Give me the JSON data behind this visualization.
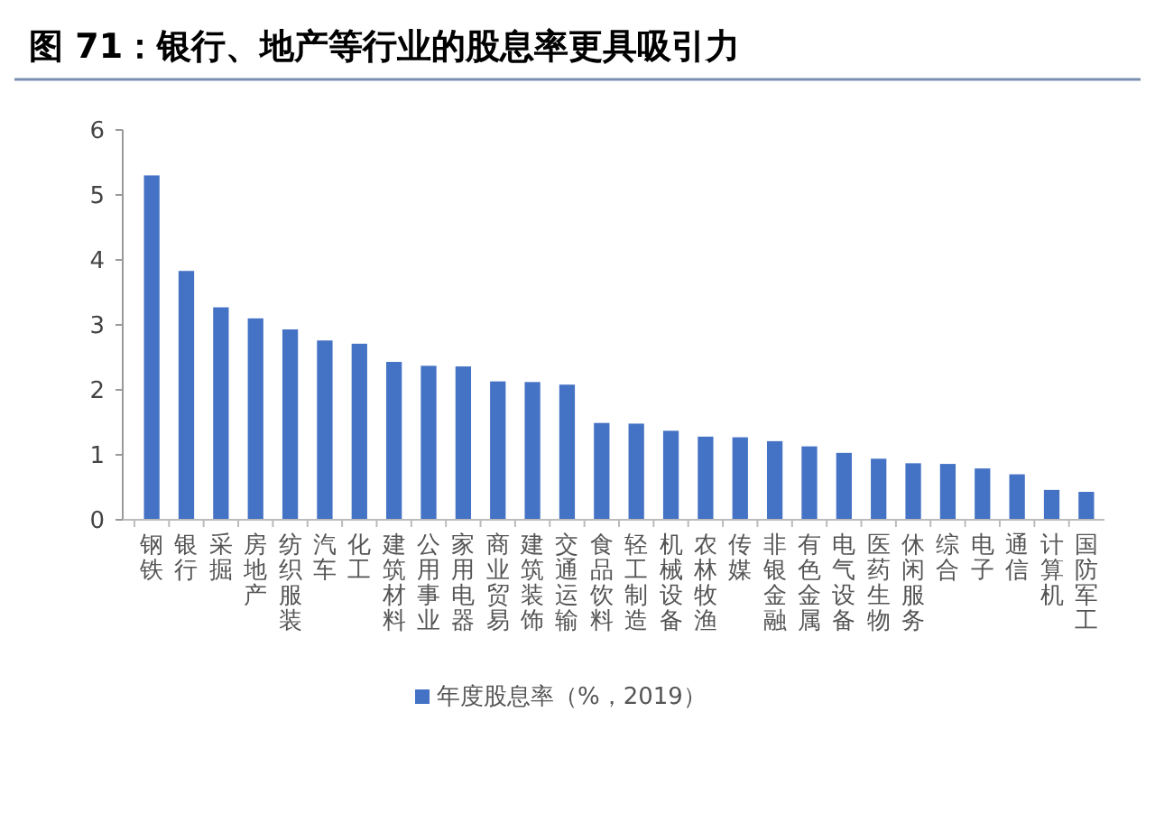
{
  "chart_data": {
    "type": "bar",
    "title": "图 71：银行、地产等行业的股息率更具吸引力",
    "categories": [
      "钢铁",
      "银行",
      "采掘",
      "房地产",
      "纺织服装",
      "汽车",
      "化工",
      "建筑材料",
      "公用事业",
      "家用电器",
      "商业贸易",
      "建筑装饰",
      "交通运输",
      "食品饮料",
      "轻工制造",
      "机械设备",
      "农林牧渔",
      "传媒",
      "非银金融",
      "有色金属",
      "电气设备",
      "医药生物",
      "休闲服务",
      "综合",
      "电子",
      "通信",
      "计算机",
      "国防军工"
    ],
    "series": [
      {
        "name": "年度股息率（%，2019）",
        "color": "#4472c4",
        "values": [
          5.3,
          3.83,
          3.27,
          3.1,
          2.93,
          2.76,
          2.71,
          2.43,
          2.37,
          2.36,
          2.13,
          2.12,
          2.08,
          1.49,
          1.48,
          1.37,
          1.28,
          1.27,
          1.21,
          1.13,
          1.03,
          0.94,
          0.87,
          0.86,
          0.79,
          0.7,
          0.46,
          0.43
        ]
      }
    ],
    "ylim": [
      0,
      6
    ],
    "yticks": [
      0,
      1,
      2,
      3,
      4,
      5,
      6
    ],
    "grid": false,
    "legend": "bottom"
  }
}
